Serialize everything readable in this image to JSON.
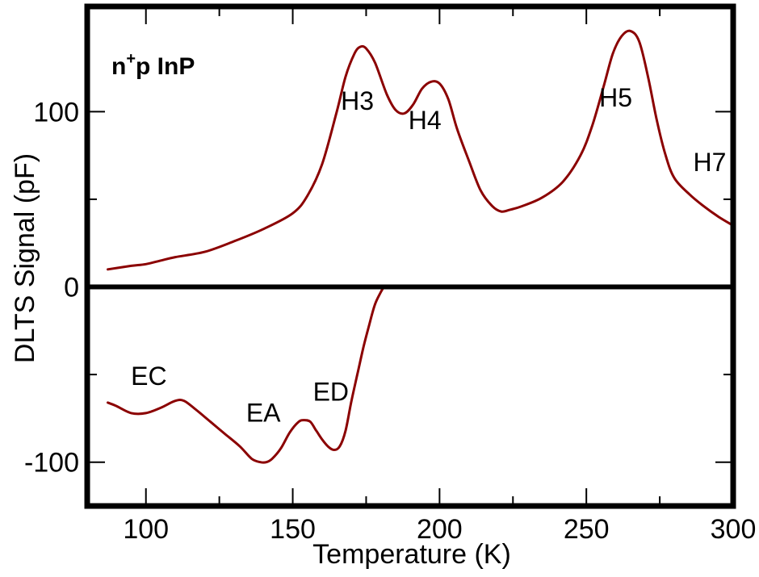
{
  "chart_data": {
    "type": "line",
    "sample_label": {
      "base": "n",
      "sup": "+",
      "rest": "p InP"
    },
    "xlabel": "Temperature (K)",
    "ylabel": "DLTS Signal (pF)",
    "xlim": [
      80,
      300
    ],
    "ylim": [
      -125,
      160
    ],
    "x_ticks": [
      100,
      150,
      200,
      250,
      300
    ],
    "x_tick_labels": [
      "100",
      "150",
      "200",
      "250",
      "300"
    ],
    "x_minor_ticks": [
      125,
      175,
      225,
      275
    ],
    "y_ticks": [
      -100,
      0,
      100
    ],
    "y_tick_labels": [
      "-100",
      "0",
      "100"
    ],
    "y_minor_ticks": [
      -50,
      50
    ],
    "zero_line": true,
    "grid": false,
    "line_color": "#8b0000",
    "series": [
      {
        "x": [
          87,
          95,
          100,
          105,
          110,
          120,
          130,
          140,
          150,
          155,
          160,
          165,
          168,
          171,
          173,
          175,
          178,
          182,
          185,
          188,
          191,
          194,
          197,
          200,
          203,
          206,
          210,
          214,
          218,
          221,
          224,
          228,
          235,
          242,
          248,
          252,
          256,
          259,
          262,
          265,
          268,
          271,
          274,
          277,
          280,
          285,
          290,
          295,
          300
        ],
        "y": [
          10,
          12,
          13,
          15,
          17,
          20,
          26,
          33,
          42,
          52,
          70,
          100,
          120,
          133,
          137,
          136,
          128,
          110,
          101,
          99,
          104,
          113,
          117,
          116,
          107,
          90,
          72,
          55,
          46,
          43,
          44,
          46,
          51,
          60,
          75,
          92,
          115,
          133,
          143,
          146,
          140,
          120,
          95,
          75,
          62,
          53,
          46,
          40,
          35
        ]
      },
      {
        "x": [
          87,
          90,
          95,
          100,
          105,
          110,
          113,
          117,
          122,
          127,
          132,
          136,
          139,
          141,
          143,
          146,
          149,
          152,
          154,
          156,
          158,
          160,
          162,
          164,
          166,
          168,
          170,
          172,
          174,
          176,
          178,
          180,
          181
        ],
        "y": [
          -66,
          -68,
          -72,
          -72,
          -69,
          -65,
          -65,
          -70,
          -77,
          -84,
          -91,
          -98,
          -100,
          -100,
          -98,
          -92,
          -83,
          -77,
          -76,
          -77,
          -82,
          -87,
          -91,
          -93,
          -91,
          -82,
          -65,
          -50,
          -35,
          -22,
          -10,
          -3,
          0
        ]
      }
    ],
    "annotations": [
      {
        "text": "H3",
        "x": 172,
        "y": 101
      },
      {
        "text": "H4",
        "x": 195,
        "y": 90
      },
      {
        "text": "H5",
        "x": 260,
        "y": 103
      },
      {
        "text": "H7",
        "x": 292,
        "y": 66
      },
      {
        "text": "EC",
        "x": 101,
        "y": -56
      },
      {
        "text": "EA",
        "x": 140,
        "y": -77
      },
      {
        "text": "ED",
        "x": 163,
        "y": -65
      }
    ]
  }
}
